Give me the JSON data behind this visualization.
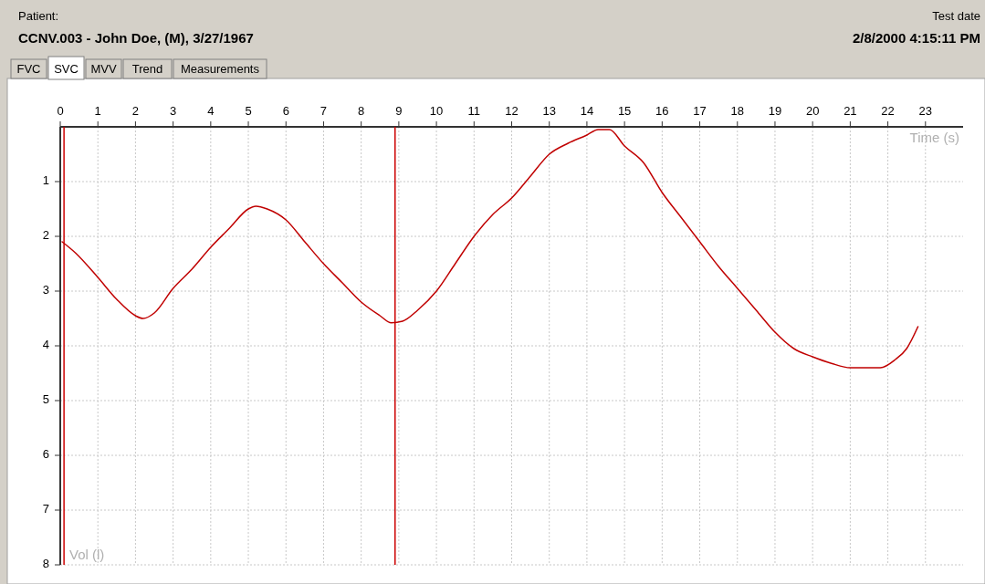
{
  "chart_data": {
    "type": "line",
    "title": "CCNV.003 - John Doe, (M), 3/27/1967",
    "annotations": [
      "Patient:",
      "Test date",
      "2/8/2000 4:15:11 PM",
      "FVC",
      "SVC",
      "MVV",
      "Trend",
      "Measurements"
    ],
    "xlabel": "Time (s)",
    "ylabel": "Vol (l)",
    "x": [
      0.05,
      0.4,
      1,
      1.5,
      2,
      2.2,
      2.5,
      3,
      3.5,
      4,
      4.5,
      5,
      5.2,
      5.5,
      6,
      6.5,
      7,
      7.5,
      8,
      8.5,
      8.8,
      9.1,
      9.5,
      10,
      10.5,
      11,
      11.5,
      12,
      12.5,
      13,
      13.5,
      14,
      14.3,
      14.6,
      15,
      15.5,
      16,
      16.5,
      17,
      17.5,
      18,
      18.5,
      19,
      19.5,
      20,
      20.5,
      21,
      21.5,
      21.8,
      22.2,
      22.5,
      22.8
    ],
    "series": [
      {
        "color": "#c00000",
        "values": [
          2.1,
          2.3,
          2.75,
          3.15,
          3.45,
          3.5,
          3.4,
          2.95,
          2.6,
          2.2,
          1.85,
          1.5,
          1.45,
          1.5,
          1.7,
          2.1,
          2.5,
          2.85,
          3.2,
          3.45,
          3.58,
          3.55,
          3.35,
          3.0,
          2.5,
          2.0,
          1.6,
          1.3,
          0.9,
          0.5,
          0.3,
          0.15,
          0.05,
          0.05,
          0.35,
          0.65,
          1.2,
          1.65,
          2.1,
          2.55,
          2.95,
          3.35,
          3.75,
          4.05,
          4.2,
          4.32,
          4.4,
          4.4,
          4.4,
          4.25,
          4.05,
          3.65
        ]
      }
    ],
    "xlim": [
      0,
      24
    ],
    "xticks": [
      0,
      1,
      2,
      3,
      4,
      5,
      6,
      7,
      8,
      9,
      10,
      11,
      12,
      13,
      14,
      15,
      16,
      17,
      18,
      19,
      20,
      21,
      22,
      23
    ],
    "ylim": [
      8,
      0
    ],
    "yticks": [
      1,
      2,
      3,
      4,
      5,
      6,
      7,
      8
    ],
    "ref_lines": [
      {
        "axis": "x",
        "value": 0.1,
        "color": "#cc0000"
      },
      {
        "axis": "x",
        "value": 8.9,
        "color": "#cc0000"
      }
    ],
    "grid": true,
    "marker": "none",
    "line_style": "solid"
  }
}
